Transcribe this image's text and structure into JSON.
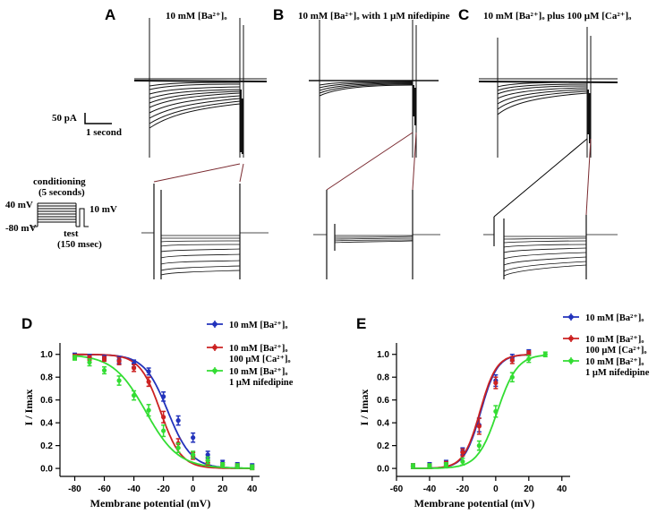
{
  "panels": {
    "a": {
      "letter": "A",
      "title": "10 mM [Ba²⁺]ₒ"
    },
    "b": {
      "letter": "B",
      "title": "10 mM [Ba²⁺]ₒ with 1 µM nifedipine"
    },
    "c": {
      "letter": "C",
      "title": "10 mM [Ba²⁺]ₒ plus 100 µM [Ca²⁺]ₒ"
    }
  },
  "scale_bar": {
    "current": "50 pA",
    "time": "1 second"
  },
  "protocol": {
    "conditioning": "conditioning",
    "duration": "(5 seconds)",
    "v_high": "40 mV",
    "v_low": "-80 mV",
    "v_test": "10 mV",
    "test": "test",
    "test_duration": "(150 msec)"
  },
  "colors": {
    "blue": "#2233bb",
    "red": "#cc2222",
    "green": "#33dd33",
    "trace": "#111111",
    "zoom_line": "#7a2a30"
  },
  "chart_data": [
    {
      "id": "D",
      "letter": "D",
      "type": "line",
      "xlabel": "Membrane potential (mV)",
      "ylabel": "I / Imax",
      "xlim": [
        -90,
        45
      ],
      "ylim": [
        -0.07,
        1.1
      ],
      "xticks": [
        -80,
        -60,
        -40,
        -20,
        0,
        20,
        40
      ],
      "yticks": [
        0.0,
        0.2,
        0.4,
        0.6,
        0.8,
        1.0
      ],
      "ytick_labels": [
        "0.0",
        "0.2",
        "0.4",
        "0.6",
        "0.8",
        "1.0"
      ],
      "legend": [
        {
          "line1": "10 mM [Ba²⁺]ₒ",
          "line2": "",
          "color_key": "blue"
        },
        {
          "line1": "10 mM [Ba²⁺]ₒ",
          "line2": "100 µM [Ca²⁺]ₒ",
          "color_key": "red"
        },
        {
          "line1": "10 mM [Ba²⁺]ₒ",
          "line2": "1 µM nifedipine",
          "color_key": "green"
        }
      ],
      "series": [
        {
          "name": "10 mM [Ba2+]o",
          "color_key": "blue",
          "curve": "inactivation",
          "v_half": -17,
          "k": 8,
          "x": [
            -80,
            -70,
            -60,
            -50,
            -40,
            -30,
            -20,
            -10,
            0,
            10,
            20,
            30,
            40
          ],
          "y": [
            0.99,
            0.98,
            0.97,
            0.95,
            0.92,
            0.85,
            0.63,
            0.42,
            0.27,
            0.12,
            0.05,
            0.03,
            0.02
          ],
          "err": [
            0.02,
            0.02,
            0.02,
            0.03,
            0.03,
            0.03,
            0.04,
            0.04,
            0.04,
            0.03,
            0.02,
            0.02,
            0.02
          ]
        },
        {
          "name": "10 mM [Ba2+]o 100 uM [Ca2+]o",
          "color_key": "red",
          "curve": "inactivation",
          "v_half": -22,
          "k": 7,
          "x": [
            -80,
            -70,
            -60,
            -50,
            -40,
            -30,
            -20,
            -10,
            0,
            10,
            20,
            30,
            40
          ],
          "y": [
            0.98,
            0.97,
            0.96,
            0.94,
            0.88,
            0.76,
            0.45,
            0.22,
            0.11,
            0.05,
            0.03,
            0.02,
            0.01
          ],
          "err": [
            0.02,
            0.02,
            0.02,
            0.03,
            0.03,
            0.04,
            0.05,
            0.04,
            0.03,
            0.02,
            0.02,
            0.02,
            0.02
          ]
        },
        {
          "name": "10 mM [Ba2+]o 1 uM nifedipine",
          "color_key": "green",
          "curve": "inactivation",
          "v_half": -32,
          "k": 11,
          "x": [
            -80,
            -70,
            -60,
            -50,
            -40,
            -30,
            -20,
            -10,
            0,
            10,
            20,
            30,
            40
          ],
          "y": [
            0.97,
            0.93,
            0.86,
            0.77,
            0.64,
            0.51,
            0.33,
            0.18,
            0.12,
            0.07,
            0.03,
            0.02,
            0.01
          ],
          "err": [
            0.02,
            0.03,
            0.03,
            0.04,
            0.04,
            0.05,
            0.05,
            0.04,
            0.03,
            0.03,
            0.02,
            0.02,
            0.02
          ]
        }
      ]
    },
    {
      "id": "E",
      "letter": "E",
      "type": "line",
      "xlabel": "Membrane potential (mV)",
      "ylabel": "I / Imax",
      "xlim": [
        -60,
        45
      ],
      "ylim": [
        -0.07,
        1.1
      ],
      "xticks": [
        -60,
        -40,
        -20,
        0,
        20,
        40
      ],
      "yticks": [
        0.0,
        0.2,
        0.4,
        0.6,
        0.8,
        1.0
      ],
      "ytick_labels": [
        "0.0",
        "0.2",
        "0.4",
        "0.6",
        "0.8",
        "1.0"
      ],
      "legend": [
        {
          "line1": "10 mM [Ba²⁺]ₒ",
          "line2": "",
          "color_key": "blue"
        },
        {
          "line1": "10 mM [Ba²⁺]ₒ",
          "line2": "100 µM [Ca²⁺]ₒ",
          "color_key": "red"
        },
        {
          "line1": "10 mM [Ba²⁺]ₒ",
          "line2": "1 µM nifedipine",
          "color_key": "green"
        }
      ],
      "series": [
        {
          "name": "10 mM [Ba2+]o",
          "color_key": "blue",
          "curve": "activation",
          "v_half": -9,
          "k": 5,
          "x": [
            -50,
            -40,
            -30,
            -20,
            -10,
            0,
            10,
            20
          ],
          "y": [
            0.02,
            0.03,
            0.05,
            0.15,
            0.38,
            0.77,
            0.97,
            1.02
          ],
          "err": [
            0.02,
            0.02,
            0.02,
            0.03,
            0.06,
            0.05,
            0.03,
            0.02
          ]
        },
        {
          "name": "10 mM [Ba2+]o 100 uM [Ca2+]o",
          "color_key": "red",
          "curve": "activation",
          "v_half": -9.5,
          "k": 5,
          "x": [
            -50,
            -40,
            -30,
            -20,
            -10,
            0,
            10,
            20
          ],
          "y": [
            0.02,
            0.02,
            0.04,
            0.14,
            0.37,
            0.75,
            0.95,
            1.01
          ],
          "err": [
            0.02,
            0.02,
            0.02,
            0.03,
            0.07,
            0.05,
            0.03,
            0.02
          ]
        },
        {
          "name": "10 mM [Ba2+]o 1 uM nifedipine",
          "color_key": "green",
          "curve": "activation",
          "v_half": 1,
          "k": 6,
          "x": [
            -50,
            -40,
            -30,
            -20,
            -10,
            0,
            10,
            20,
            30
          ],
          "y": [
            0.02,
            0.02,
            0.03,
            0.06,
            0.2,
            0.5,
            0.8,
            0.96,
            1.0
          ],
          "err": [
            0.02,
            0.02,
            0.02,
            0.03,
            0.04,
            0.05,
            0.04,
            0.03,
            0.02
          ]
        }
      ]
    }
  ]
}
